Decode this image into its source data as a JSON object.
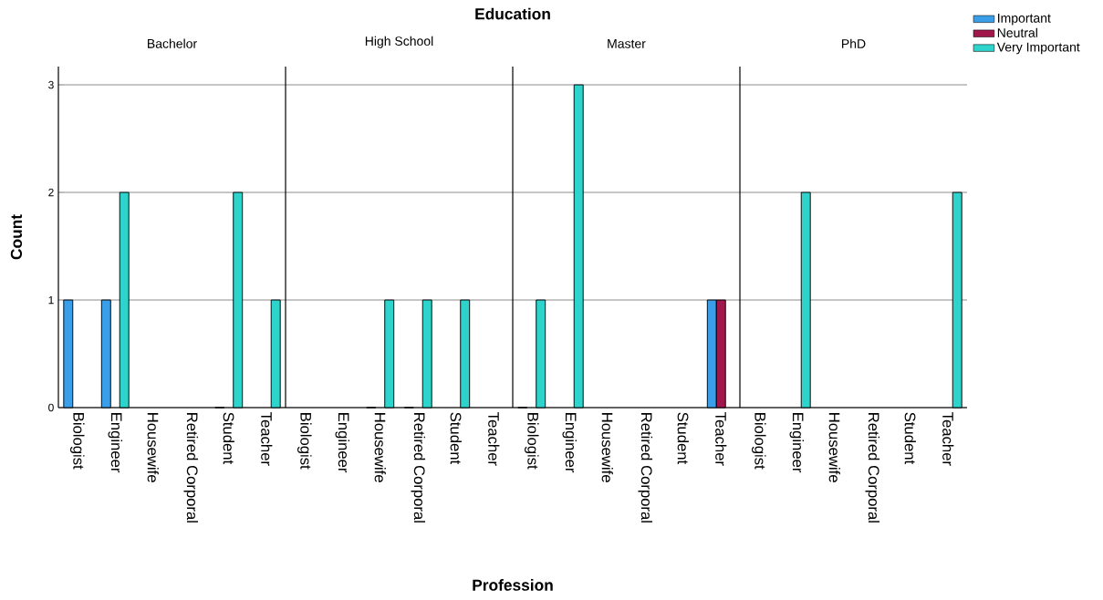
{
  "chart_data": [
    {
      "type": "bar",
      "title": "Bachelor",
      "ylabel": "Count",
      "categories": [
        "Biologist",
        "Engineer",
        "Housewife",
        "Retired Corporal",
        "Student",
        "Teacher"
      ],
      "ylim": [
        0,
        3.17
      ],
      "yticks": [
        0,
        1,
        2,
        3
      ],
      "grid": "y",
      "series": [
        {
          "color": "#3a9fe8",
          "values": [
            1,
            1,
            null,
            null,
            0,
            null
          ]
        },
        {
          "color": "#a0174a",
          "values": [
            null,
            null,
            null,
            null,
            null,
            null
          ]
        },
        {
          "color": "#2ed3cc",
          "values": [
            null,
            2,
            null,
            null,
            2,
            1
          ]
        }
      ]
    },
    {
      "type": "bar",
      "title": "High School",
      "xlabel": "Profession",
      "annotations": [
        "Education"
      ],
      "categories": [
        "Biologist",
        "Engineer",
        "Housewife",
        "Retired Corporal",
        "Student",
        "Teacher"
      ],
      "ylim": [
        0,
        3.17
      ],
      "yticks": [
        0,
        1,
        2,
        3
      ],
      "grid": "y",
      "tick_labels": "x",
      "series": [
        {
          "color": "#3a9fe8",
          "values": [
            null,
            null,
            0,
            0,
            null,
            null
          ]
        },
        {
          "color": "#a0174a",
          "values": [
            null,
            null,
            null,
            null,
            null,
            null
          ]
        },
        {
          "color": "#2ed3cc",
          "values": [
            null,
            null,
            1,
            1,
            1,
            null
          ]
        }
      ]
    },
    {
      "type": "bar",
      "title": "Master",
      "categories": [
        "Biologist",
        "Engineer",
        "Housewife",
        "Retired Corporal",
        "Student",
        "Teacher"
      ],
      "ylim": [
        0,
        3.17
      ],
      "yticks": [
        0,
        1,
        2,
        3
      ],
      "grid": "y",
      "tick_labels": "x",
      "series": [
        {
          "color": "#3a9fe8",
          "values": [
            0,
            null,
            null,
            null,
            null,
            1
          ]
        },
        {
          "color": "#a0174a",
          "values": [
            null,
            null,
            null,
            null,
            null,
            1
          ]
        },
        {
          "color": "#2ed3cc",
          "values": [
            1,
            3,
            null,
            null,
            null,
            null
          ]
        }
      ]
    },
    {
      "type": "bar",
      "title": "PhD",
      "categories": [
        "Biologist",
        "Engineer",
        "Housewife",
        "Retired Corporal",
        "Student",
        "Teacher"
      ],
      "ylim": [
        0,
        3.17
      ],
      "yticks": [
        0,
        1,
        2,
        3
      ],
      "grid": "y",
      "tick_labels": "x",
      "legend": "top right",
      "series": [
        {
          "name": "Important",
          "color": "#3a9fe8",
          "values": [
            null,
            null,
            null,
            null,
            null,
            null
          ]
        },
        {
          "name": "Neutral",
          "color": "#a0174a",
          "values": [
            null,
            null,
            null,
            null,
            null,
            null
          ]
        },
        {
          "name": "Very Important",
          "color": "#2ed3cc",
          "values": [
            null,
            2,
            null,
            null,
            null,
            2
          ]
        }
      ]
    }
  ]
}
